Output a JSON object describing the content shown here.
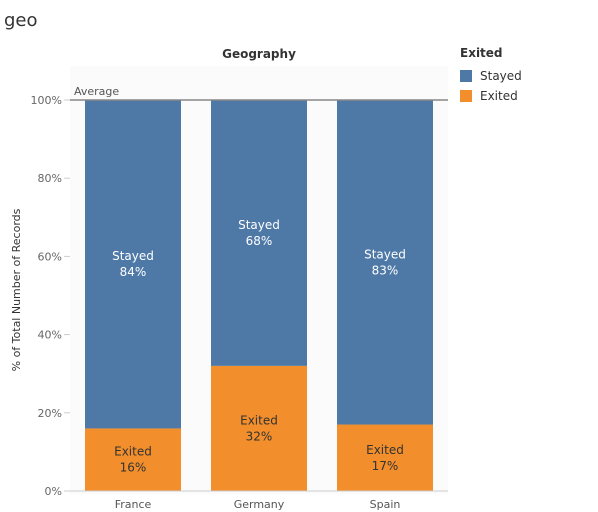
{
  "sheet_title": "geo",
  "legend": {
    "title": "Exited",
    "items": [
      {
        "label": "Stayed",
        "color": "#4e79a7"
      },
      {
        "label": "Exited",
        "color": "#f28e2b"
      }
    ]
  },
  "chart_data": {
    "type": "bar",
    "stacked": true,
    "column_header": "Geography",
    "categories": [
      "France",
      "Germany",
      "Spain"
    ],
    "series": [
      {
        "name": "Exited",
        "color": "#f28e2b",
        "values": [
          16,
          32,
          17
        ],
        "labels": [
          "16%",
          "32%",
          "17%"
        ]
      },
      {
        "name": "Stayed",
        "color": "#4e79a7",
        "values": [
          84,
          68,
          83
        ],
        "labels": [
          "84%",
          "68%",
          "83%"
        ]
      }
    ],
    "ylabel": "% of Total Number of Records",
    "ylim": [
      0,
      100
    ],
    "yticks": [
      "0%",
      "20%",
      "40%",
      "60%",
      "80%",
      "100%"
    ],
    "reference_line": {
      "label": "Average",
      "value": 100
    },
    "legend_position": "right"
  }
}
